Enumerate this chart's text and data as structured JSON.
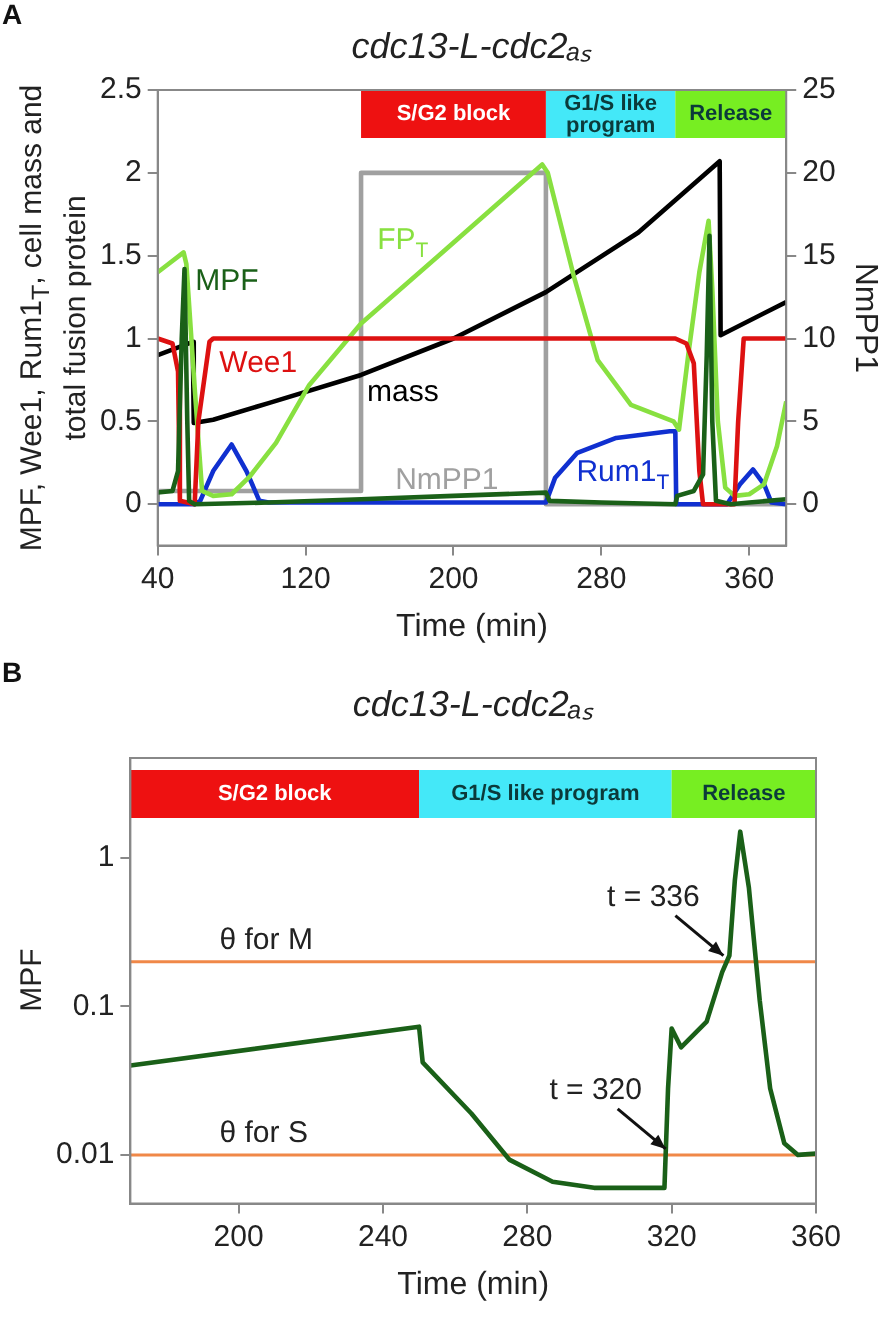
{
  "chart_data": [
    {
      "type": "line",
      "title": "cdc13-L-cdc2ₐₛ",
      "xlabel": "Time (min)",
      "ylabel": "MPF, Wee1, Rum1$_{T}$, cell mass and total fusion protein",
      "y2label": "NmPP1",
      "xlim": [
        40,
        380
      ],
      "xticks": [
        40,
        120,
        200,
        280,
        360
      ],
      "ylim": [
        -0.25,
        2.5
      ],
      "yticks": [
        0,
        0.5,
        1,
        1.5,
        2,
        2.5
      ],
      "y2lim": [
        -2.5,
        25
      ],
      "y2ticks": [
        0,
        5,
        10,
        15,
        20,
        25
      ],
      "legend": false,
      "grid": false,
      "marker": "none",
      "bands": [
        {
          "axis": "x",
          "from": 150,
          "to": 250,
          "label": "S/G2 block",
          "color": "#ee1111"
        },
        {
          "axis": "x",
          "from": 250,
          "to": 320,
          "label": "G1/S like program",
          "color": "#44e8f8"
        },
        {
          "axis": "x",
          "from": 320,
          "to": 380,
          "label": "Release",
          "color": "#77ee22"
        }
      ],
      "annotations": [
        "A"
      ],
      "series": [
        {
          "name": "MPF",
          "color": "#1a6018",
          "x": [
            40,
            48,
            51,
            53,
            54.5,
            56,
            57,
            60,
            100,
            150,
            200,
            250,
            252,
            280,
            320,
            321,
            330,
            335,
            337,
            338.5,
            340,
            342,
            350,
            360,
            380
          ],
          "values": [
            0.07,
            0.08,
            0.2,
            1.0,
            1.42,
            0.5,
            0.02,
            0.0,
            0.01,
            0.03,
            0.05,
            0.07,
            0.02,
            0.01,
            0.0,
            0.05,
            0.08,
            0.18,
            0.9,
            1.62,
            0.5,
            0.02,
            0.0,
            0.01,
            0.03
          ]
        },
        {
          "name": "Wee1",
          "color": "#dd1111",
          "x": [
            40,
            48,
            51,
            52,
            60,
            62,
            68,
            70,
            320,
            326,
            330,
            333,
            335,
            352,
            354,
            357,
            380
          ],
          "values": [
            1.0,
            0.97,
            0.8,
            0.02,
            0.0,
            0.5,
            0.98,
            1.0,
            1.0,
            0.97,
            0.85,
            0.2,
            0.0,
            0.0,
            0.5,
            1.0,
            1.0
          ]
        },
        {
          "name": "FP$_{T}$",
          "color": "#88e040",
          "x": [
            40,
            54,
            55.5,
            60,
            64,
            70,
            80,
            90,
            104,
            122,
            150,
            191,
            248,
            251,
            265,
            278,
            296,
            319,
            322,
            327,
            333,
            338,
            340,
            343,
            347,
            352,
            360,
            368,
            375,
            380
          ],
          "values": [
            1.4,
            1.52,
            1.45,
            0.7,
            0.08,
            0.05,
            0.06,
            0.17,
            0.37,
            0.72,
            1.09,
            1.49,
            2.05,
            2.0,
            1.38,
            0.87,
            0.6,
            0.5,
            0.45,
            0.9,
            1.4,
            1.71,
            1.3,
            0.5,
            0.1,
            0.05,
            0.06,
            0.12,
            0.35,
            0.62
          ]
        },
        {
          "name": "mass",
          "color": "#000000",
          "x": [
            40,
            59,
            59.5,
            70,
            100,
            150,
            200,
            250,
            300,
            344,
            344.5,
            380
          ],
          "values": [
            0.9,
            0.98,
            0.49,
            0.51,
            0.61,
            0.78,
            1.0,
            1.28,
            1.64,
            2.07,
            1.02,
            1.22
          ]
        },
        {
          "name": "Rum1$_{T}$",
          "color": "#1030d0",
          "x": [
            40,
            60,
            63,
            70,
            80,
            88,
            95,
            100,
            150,
            250,
            255,
            267,
            288,
            317,
            320,
            320.5,
            348,
            355,
            362,
            368,
            372,
            380
          ],
          "values": [
            0.0,
            0.0,
            0.02,
            0.2,
            0.36,
            0.2,
            0.02,
            0.01,
            0.01,
            0.01,
            0.16,
            0.31,
            0.4,
            0.44,
            0.44,
            0.0,
            0.0,
            0.12,
            0.21,
            0.12,
            0.01,
            0.0
          ]
        },
        {
          "name": "NmPP1",
          "type": "step",
          "axis": "y2",
          "color": "#a0a0a0",
          "x": [
            40,
            150,
            250,
            320,
            380
          ],
          "values": [
            0,
            0.8,
            20,
            0,
            0
          ]
        }
      ]
    },
    {
      "type": "line",
      "title": "cdc13-L-cdc2ₐₛ",
      "xlabel": "Time (min)",
      "ylabel": "MPF",
      "xlim": [
        170,
        360
      ],
      "xticks": [
        200,
        240,
        280,
        320,
        360
      ],
      "ylim": [
        0.0047,
        4.7
      ],
      "yticks": [
        0.01,
        0.1,
        1
      ],
      "log": "y",
      "legend": false,
      "grid": false,
      "marker": "none",
      "bands": [
        {
          "axis": "x",
          "from": 170,
          "to": 250,
          "label": "S/G2 block",
          "color": "#ee1111"
        },
        {
          "axis": "x",
          "from": 250,
          "to": 320,
          "label": "G1/S like program",
          "color": "#44e8f8"
        },
        {
          "axis": "x",
          "from": 320,
          "to": 360,
          "label": "Release",
          "color": "#77ee22"
        }
      ],
      "ref_lines": [
        {
          "axis": "y",
          "value": 0.2,
          "label": "θ for M",
          "color": "#f08848"
        },
        {
          "axis": "y",
          "value": 0.01,
          "label": "θ for S",
          "color": "#f08848"
        }
      ],
      "annotations": [
        "B",
        {
          "text": "t = 336",
          "x": 336,
          "y": 0.2
        },
        {
          "text": "t = 320",
          "x": 320,
          "y": 0.01
        }
      ],
      "series": [
        {
          "color": "#1a6018",
          "x": [
            170,
            250,
            251,
            264.5,
            275,
            287,
            298.5,
            318,
            319,
            320,
            322.6,
            329.7,
            334,
            336,
            337.5,
            339,
            341.4,
            344.4,
            347.3,
            351.2,
            355,
            360
          ],
          "values": [
            0.04,
            0.073,
            0.042,
            0.019,
            0.0093,
            0.0066,
            0.006,
            0.006,
            0.028,
            0.071,
            0.053,
            0.079,
            0.17,
            0.22,
            0.7,
            1.5,
            0.63,
            0.11,
            0.028,
            0.012,
            0.01,
            0.0102
          ]
        }
      ]
    }
  ]
}
